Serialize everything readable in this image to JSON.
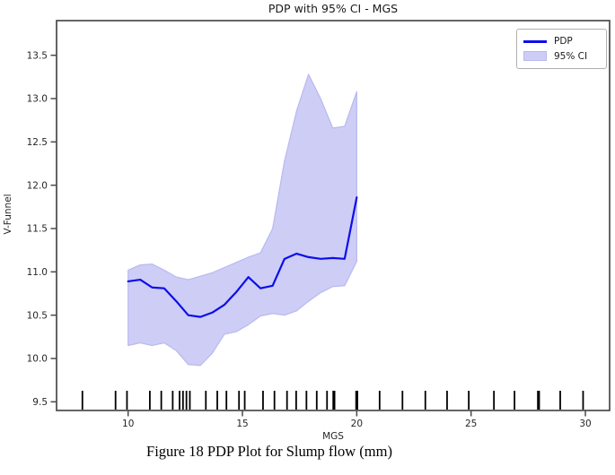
{
  "figure": {
    "title": "PDP with 95% CI - MGS",
    "xlabel": "MGS",
    "ylabel": "V-Funnel",
    "caption": "Figure 18 PDP Plot for Slump flow (mm)"
  },
  "legend": {
    "items": [
      {
        "label": "PDP",
        "swatch": "line"
      },
      {
        "label": "95% CI",
        "swatch": "patch"
      }
    ]
  },
  "colors": {
    "pdp_line": "#0d0deb",
    "ci_fill": "#cdcdf6",
    "ci_edge": "#b9b9f0",
    "rug": "#000000",
    "spine": "#4a4a4a",
    "tick_text": "#262626"
  },
  "chart_data": {
    "type": "line",
    "title": "PDP with 95% CI - MGS",
    "xlabel": "MGS",
    "ylabel": "V-Funnel",
    "xlim": [
      6.87,
      31.06
    ],
    "ylim": [
      9.4,
      13.9
    ],
    "grid": false,
    "legend_position": "upper right",
    "x_ticks": [
      {
        "value": 10,
        "label": "10"
      },
      {
        "value": 15,
        "label": "15"
      },
      {
        "value": 20,
        "label": "20"
      },
      {
        "value": 25,
        "label": "25"
      },
      {
        "value": 30,
        "label": "30"
      }
    ],
    "y_ticks": [
      {
        "value": 9.5,
        "label": "9.5"
      },
      {
        "value": 10.0,
        "label": "10.0"
      },
      {
        "value": 10.5,
        "label": "10.5"
      },
      {
        "value": 11.0,
        "label": "11.0"
      },
      {
        "value": 11.5,
        "label": "11.5"
      },
      {
        "value": 12.0,
        "label": "12.0"
      },
      {
        "value": 12.5,
        "label": "12.5"
      },
      {
        "value": 13.0,
        "label": "13.0"
      },
      {
        "value": 13.5,
        "label": "13.5"
      }
    ],
    "series": [
      {
        "name": "PDP",
        "kind": "line",
        "x": [
          10,
          10.53,
          11.05,
          11.58,
          12.11,
          12.63,
          13.16,
          13.68,
          14.21,
          14.74,
          15.26,
          15.79,
          16.32,
          16.84,
          17.37,
          17.89,
          18.42,
          18.95,
          19.47,
          20
        ],
        "y": [
          10.89,
          10.91,
          10.82,
          10.81,
          10.66,
          10.5,
          10.48,
          10.53,
          10.62,
          10.77,
          10.94,
          10.81,
          10.84,
          11.15,
          11.21,
          11.17,
          11.15,
          11.16,
          11.15,
          11.86
        ]
      },
      {
        "name": "95% CI",
        "kind": "band",
        "x": [
          10,
          10.53,
          11.05,
          11.58,
          12.11,
          12.63,
          13.16,
          13.68,
          14.21,
          14.74,
          15.26,
          15.79,
          16.32,
          16.84,
          17.37,
          17.89,
          18.42,
          18.95,
          19.47,
          20
        ],
        "upper": [
          11.02,
          11.08,
          11.09,
          11.02,
          10.94,
          10.91,
          10.95,
          10.99,
          11.05,
          11.11,
          11.17,
          11.22,
          11.5,
          12.28,
          12.86,
          13.28,
          13.0,
          12.66,
          12.68,
          13.08
        ],
        "lower": [
          10.15,
          10.18,
          10.15,
          10.18,
          10.09,
          9.93,
          9.92,
          10.06,
          10.28,
          10.31,
          10.39,
          10.49,
          10.52,
          10.5,
          10.55,
          10.66,
          10.76,
          10.83,
          10.84,
          11.12
        ]
      }
    ],
    "rug": {
      "x": [
        8.0,
        9.45,
        9.95,
        10.95,
        11.45,
        11.95,
        12.25,
        12.4,
        12.55,
        12.7,
        13.4,
        13.9,
        14.3,
        14.85,
        15.1,
        15.9,
        16.4,
        16.95,
        17.35,
        17.8,
        18.25,
        18.7,
        21.0,
        22.0,
        23.0,
        23.95,
        24.9,
        26.0,
        26.9,
        28.9,
        29.9
      ],
      "bold_x": [
        19.0,
        20.0,
        27.95
      ]
    }
  }
}
